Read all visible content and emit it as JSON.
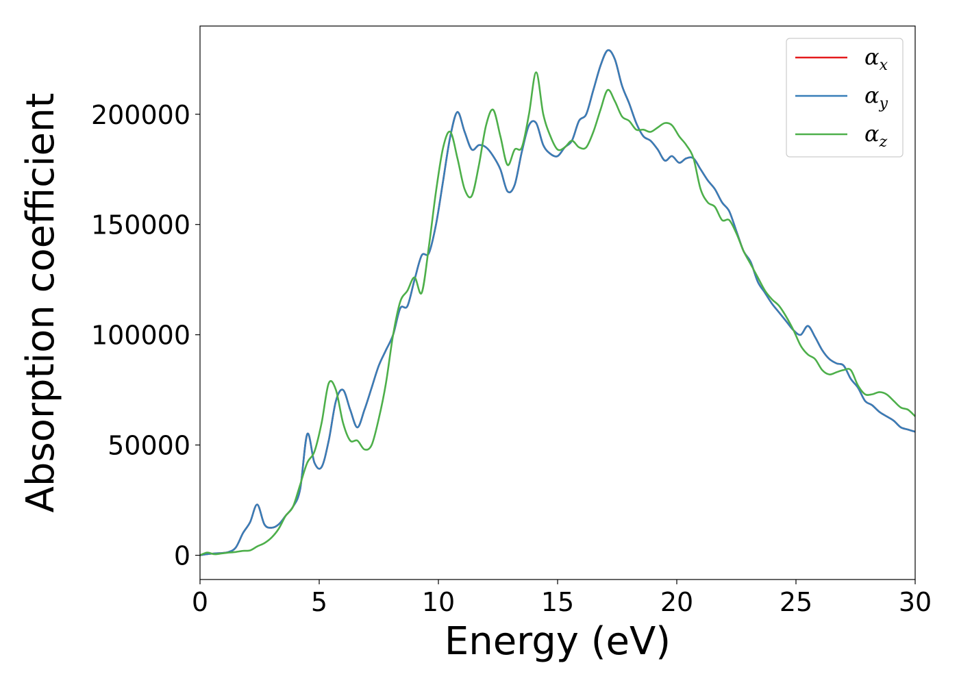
{
  "chart_data": {
    "type": "line",
    "title": "",
    "xlabel": "Energy (eV)",
    "ylabel": "Absorption coefficient",
    "xlim": [
      0,
      30
    ],
    "ylim": [
      -11000,
      240000
    ],
    "xticks": [
      0,
      5,
      10,
      15,
      20,
      25,
      30
    ],
    "yticks": [
      0,
      50000,
      100000,
      150000,
      200000
    ],
    "grid": false,
    "legend": "top-right",
    "series": [
      {
        "name": "α_x",
        "base": "α",
        "sub": "x",
        "color": "#e41a1c",
        "x": [
          0,
          0.3,
          0.6,
          0.9,
          1.2,
          1.5,
          1.8,
          2.1,
          2.4,
          2.7,
          3.0,
          3.3,
          3.6,
          3.9,
          4.2,
          4.5,
          4.8,
          5.1,
          5.4,
          5.7,
          6.0,
          6.3,
          6.6,
          6.9,
          7.2,
          7.5,
          7.8,
          8.1,
          8.4,
          8.7,
          9.0,
          9.3,
          9.6,
          9.9,
          10.2,
          10.5,
          10.8,
          11.1,
          11.4,
          11.7,
          12.0,
          12.3,
          12.6,
          12.9,
          13.2,
          13.5,
          13.8,
          14.1,
          14.4,
          14.7,
          15.0,
          15.3,
          15.6,
          15.9,
          16.2,
          16.5,
          16.8,
          17.1,
          17.4,
          17.7,
          18.0,
          18.3,
          18.6,
          18.9,
          19.2,
          19.5,
          19.8,
          20.1,
          20.4,
          20.7,
          21.0,
          21.3,
          21.6,
          21.9,
          22.2,
          22.5,
          22.8,
          23.1,
          23.4,
          23.7,
          24.0,
          24.3,
          24.6,
          24.9,
          25.2,
          25.5,
          25.8,
          26.1,
          26.4,
          26.7,
          27.0,
          27.3,
          27.6,
          27.9,
          28.2,
          28.5,
          28.8,
          29.1,
          29.4,
          29.7,
          30.0
        ],
        "values": [
          0,
          500,
          800,
          1000,
          1500,
          3500,
          10000,
          15000,
          23000,
          14000,
          12500,
          14000,
          18000,
          22000,
          30000,
          55000,
          42000,
          40000,
          52000,
          70000,
          75000,
          66000,
          58000,
          66000,
          76000,
          86000,
          93000,
          100000,
          112000,
          113000,
          125000,
          136000,
          137000,
          150000,
          170000,
          190000,
          201000,
          192000,
          184000,
          186000,
          185000,
          181000,
          175000,
          165000,
          168000,
          183000,
          195000,
          196000,
          186000,
          182000,
          181000,
          185000,
          188000,
          197000,
          200000,
          211000,
          222000,
          229000,
          225000,
          213000,
          205000,
          196000,
          190000,
          188000,
          184000,
          179000,
          181000,
          178000,
          180000,
          180000,
          175000,
          170000,
          166000,
          160000,
          156000,
          147000,
          138000,
          133000,
          124000,
          119000,
          114000,
          110000,
          106000,
          102000,
          100000,
          104000,
          99000,
          93000,
          89000,
          87000,
          86000,
          80000,
          76000,
          70000,
          68000,
          65000,
          63000,
          61000,
          58000,
          57000,
          56000
        ]
      },
      {
        "name": "α_y",
        "base": "α",
        "sub": "y",
        "color": "#377eb8",
        "x": [
          0,
          0.3,
          0.6,
          0.9,
          1.2,
          1.5,
          1.8,
          2.1,
          2.4,
          2.7,
          3.0,
          3.3,
          3.6,
          3.9,
          4.2,
          4.5,
          4.8,
          5.1,
          5.4,
          5.7,
          6.0,
          6.3,
          6.6,
          6.9,
          7.2,
          7.5,
          7.8,
          8.1,
          8.4,
          8.7,
          9.0,
          9.3,
          9.6,
          9.9,
          10.2,
          10.5,
          10.8,
          11.1,
          11.4,
          11.7,
          12.0,
          12.3,
          12.6,
          12.9,
          13.2,
          13.5,
          13.8,
          14.1,
          14.4,
          14.7,
          15.0,
          15.3,
          15.6,
          15.9,
          16.2,
          16.5,
          16.8,
          17.1,
          17.4,
          17.7,
          18.0,
          18.3,
          18.6,
          18.9,
          19.2,
          19.5,
          19.8,
          20.1,
          20.4,
          20.7,
          21.0,
          21.3,
          21.6,
          21.9,
          22.2,
          22.5,
          22.8,
          23.1,
          23.4,
          23.7,
          24.0,
          24.3,
          24.6,
          24.9,
          25.2,
          25.5,
          25.8,
          26.1,
          26.4,
          26.7,
          27.0,
          27.3,
          27.6,
          27.9,
          28.2,
          28.5,
          28.8,
          29.1,
          29.4,
          29.7,
          30.0
        ],
        "values": [
          0,
          500,
          800,
          1000,
          1500,
          3500,
          10000,
          15000,
          23000,
          14000,
          12500,
          14000,
          18000,
          22000,
          30000,
          55000,
          42000,
          40000,
          52000,
          70000,
          75000,
          66000,
          58000,
          66000,
          76000,
          86000,
          93000,
          100000,
          112000,
          113000,
          125000,
          136000,
          137000,
          150000,
          170000,
          190000,
          201000,
          192000,
          184000,
          186000,
          185000,
          181000,
          175000,
          165000,
          168000,
          183000,
          195000,
          196000,
          186000,
          182000,
          181000,
          185000,
          188000,
          197000,
          200000,
          211000,
          222000,
          229000,
          225000,
          213000,
          205000,
          196000,
          190000,
          188000,
          184000,
          179000,
          181000,
          178000,
          180000,
          180000,
          175000,
          170000,
          166000,
          160000,
          156000,
          147000,
          138000,
          133000,
          124000,
          119000,
          114000,
          110000,
          106000,
          102000,
          100000,
          104000,
          99000,
          93000,
          89000,
          87000,
          86000,
          80000,
          76000,
          70000,
          68000,
          65000,
          63000,
          61000,
          58000,
          57000,
          56000
        ]
      },
      {
        "name": "α_z",
        "base": "α",
        "sub": "z",
        "color": "#4daf4a",
        "x": [
          0,
          0.3,
          0.6,
          0.9,
          1.2,
          1.5,
          1.8,
          2.1,
          2.4,
          2.7,
          3.0,
          3.3,
          3.6,
          3.9,
          4.2,
          4.5,
          4.8,
          5.1,
          5.4,
          5.7,
          6.0,
          6.3,
          6.6,
          6.9,
          7.2,
          7.5,
          7.8,
          8.1,
          8.4,
          8.7,
          9.0,
          9.3,
          9.6,
          9.9,
          10.2,
          10.5,
          10.8,
          11.1,
          11.4,
          11.7,
          12.0,
          12.3,
          12.6,
          12.9,
          13.2,
          13.5,
          13.8,
          14.1,
          14.4,
          14.7,
          15.0,
          15.3,
          15.6,
          15.9,
          16.2,
          16.5,
          16.8,
          17.1,
          17.4,
          17.7,
          18.0,
          18.3,
          18.6,
          18.9,
          19.2,
          19.5,
          19.8,
          20.1,
          20.4,
          20.7,
          21.0,
          21.3,
          21.6,
          21.9,
          22.2,
          22.5,
          22.8,
          23.1,
          23.4,
          23.7,
          24.0,
          24.3,
          24.6,
          24.9,
          25.2,
          25.5,
          25.8,
          26.1,
          26.4,
          26.7,
          27.0,
          27.3,
          27.6,
          27.9,
          28.2,
          28.5,
          28.8,
          29.1,
          29.4,
          29.7,
          30.0
        ],
        "values": [
          0,
          1200,
          500,
          800,
          1200,
          1500,
          2000,
          2200,
          4000,
          5500,
          8000,
          12000,
          18000,
          22000,
          32000,
          42000,
          47000,
          60000,
          78000,
          75000,
          60000,
          52000,
          52000,
          48000,
          50000,
          62000,
          78000,
          100000,
          115000,
          120000,
          126000,
          119000,
          140000,
          165000,
          185000,
          192000,
          180000,
          166000,
          163000,
          177000,
          195000,
          202000,
          190000,
          177000,
          184000,
          185000,
          200000,
          219000,
          200000,
          190000,
          184000,
          185000,
          188000,
          185000,
          185000,
          192000,
          202000,
          211000,
          206000,
          199000,
          197000,
          193000,
          193000,
          192000,
          194000,
          196000,
          195000,
          190000,
          186000,
          180000,
          166000,
          160000,
          158000,
          152000,
          152000,
          146000,
          138000,
          132000,
          126000,
          120000,
          116000,
          113000,
          108000,
          102000,
          95000,
          91000,
          89000,
          84000,
          82000,
          83000,
          84000,
          84000,
          77000,
          73000,
          73000,
          74000,
          73000,
          70000,
          67000,
          66000,
          63000
        ]
      }
    ]
  }
}
